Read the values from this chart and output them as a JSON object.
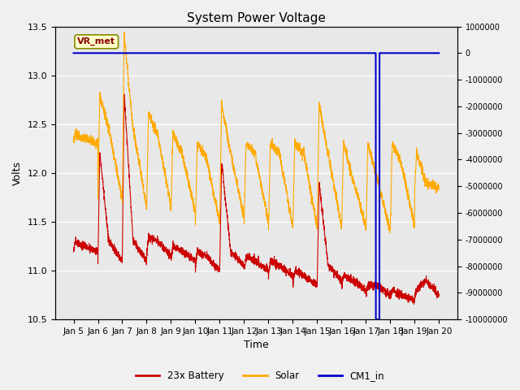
{
  "title": "System Power Voltage",
  "xlabel": "Time",
  "ylabel": "Volts",
  "ylim": [
    10.5,
    13.5
  ],
  "ylim2": [
    -10000000,
    1000000
  ],
  "yticks2": [
    1000000,
    0,
    -1000000,
    -2000000,
    -3000000,
    -4000000,
    -5000000,
    -6000000,
    -7000000,
    -8000000,
    -9000000,
    -10000000
  ],
  "background_color": "#f0f0f0",
  "plot_bg_color": "#e8e8e8",
  "legend_labels": [
    "23x Battery",
    "Solar",
    "CM1_in"
  ],
  "legend_colors": [
    "#cc0000",
    "#ffaa00",
    "#0000cc"
  ],
  "vr_met_label": "VR_met",
  "grid_color": "#ffffff",
  "title_fontsize": 11,
  "figsize": [
    6.4,
    4.8
  ],
  "dpi": 100,
  "num_days": 15
}
